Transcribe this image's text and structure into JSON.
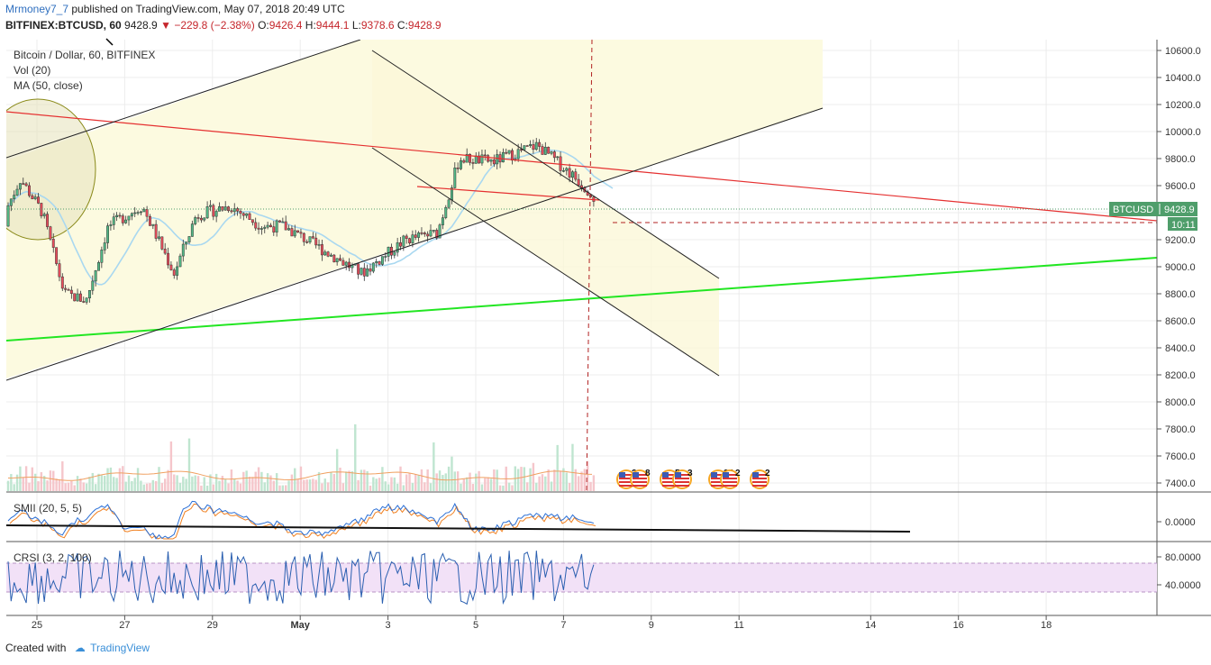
{
  "header": {
    "author": "Mrmoney7_7",
    "published_text": "published on TradingView.com, May 07, 2018 20:49 UTC"
  },
  "symbol_bar": {
    "ticker": "BITFINEX:BTCUSD, 60",
    "last": "9428.9",
    "change": "−229.8 (−2.38%)",
    "open_label": "O:",
    "open": "9426.4",
    "high_label": "H:",
    "high": "9444.1",
    "low_label": "L:",
    "low": "9378.6",
    "close_label": "C:",
    "close": "9428.9"
  },
  "legend": {
    "title": "Bitcoin / Dollar, 60, BITFINEX",
    "vol": "Vol (20)",
    "ma": "MA (50, close)"
  },
  "price_badge": {
    "symbol": "BTCUSD",
    "value": "9428.9",
    "countdown": "10:11"
  },
  "indicators": {
    "smii": {
      "label": "SMII (20, 5, 5)",
      "ticks": [
        "0.0000"
      ]
    },
    "crsi": {
      "label": "CRSI (3, 2, 100)",
      "ticks": [
        "80.0000",
        "40.0000"
      ]
    }
  },
  "events": [
    "2",
    "8",
    "5",
    "3",
    "34",
    "2",
    "2"
  ],
  "footer": {
    "created": "Created with",
    "brand": "TradingView"
  },
  "colors": {
    "up": "#53b987",
    "down": "#eb4d5c",
    "ma": "#a9d8f0",
    "green_trend": "#22e622",
    "red_trend": "#e53030",
    "channel": "#222222",
    "shade": "#fcfae0",
    "price_badge": "#4f9e6b",
    "crsi_band": "#f2e1f7"
  },
  "chart_data": {
    "type": "candlestick",
    "title": "Bitcoin / Dollar, 60, BITFINEX",
    "x_ticks": [
      "25",
      "27",
      "29",
      "May",
      "3",
      "5",
      "7",
      "9",
      "11",
      "14",
      "16",
      "18"
    ],
    "y_ticks": [
      "10600.0",
      "10400.0",
      "10200.0",
      "10000.0",
      "9800.0",
      "9600.0",
      "9400.0",
      "9200.0",
      "9000.0",
      "8800.0",
      "8600.0",
      "8400.0",
      "8200.0",
      "8000.0",
      "7800.0",
      "7600.0",
      "7400.0"
    ],
    "ylim": [
      7370,
      10660
    ],
    "grid": true,
    "last_price": 9428.9,
    "price_path_anchors": [
      {
        "x": "Apr 24",
        "y": 9300
      },
      {
        "x": "Apr 24",
        "y": 9650
      },
      {
        "x": "Apr 25",
        "y": 9400
      },
      {
        "x": "Apr 25",
        "y": 8800
      },
      {
        "x": "Apr 26",
        "y": 8750
      },
      {
        "x": "Apr 26",
        "y": 9300
      },
      {
        "x": "Apr 27",
        "y": 9450
      },
      {
        "x": "Apr 28",
        "y": 8950
      },
      {
        "x": "Apr 28",
        "y": 9380
      },
      {
        "x": "Apr 29",
        "y": 9450
      },
      {
        "x": "Apr 30",
        "y": 9300
      },
      {
        "x": "Apr 30",
        "y": 9300
      },
      {
        "x": "May 1",
        "y": 8950
      },
      {
        "x": "May 2",
        "y": 9200
      },
      {
        "x": "May 3",
        "y": 9250
      },
      {
        "x": "May 3",
        "y": 9800
      },
      {
        "x": "May 4",
        "y": 9780
      },
      {
        "x": "May 5",
        "y": 9900
      },
      {
        "x": "May 6",
        "y": 9700
      },
      {
        "x": "May 6",
        "y": 9550
      },
      {
        "x": "May 7",
        "y": 9330
      },
      {
        "x": "May 7",
        "y": 9430
      }
    ]
  }
}
